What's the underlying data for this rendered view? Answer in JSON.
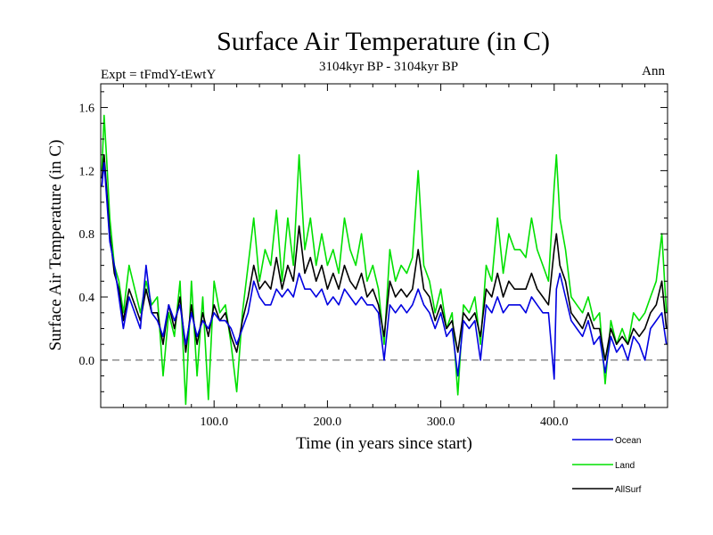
{
  "chart_data": {
    "type": "line",
    "title": "Surface Air Temperature (in C)",
    "subtitle": "3104kyr BP - 3104kyr BP",
    "expt_label": "Expt = tFmdY-tEwtY",
    "season_label": "Ann",
    "xlabel": "Time (in years since start)",
    "ylabel": "Surface Air Temperature (in C)",
    "xlim": [
      0,
      500
    ],
    "ylim": [
      -0.3,
      1.75
    ],
    "xticks": [
      {
        "value": 100,
        "label": "100.0"
      },
      {
        "value": 200,
        "label": "200.0"
      },
      {
        "value": 300,
        "label": "300.0"
      },
      {
        "value": 400,
        "label": "400.0"
      }
    ],
    "yticks": [
      {
        "value": 0.0,
        "label": "0.0"
      },
      {
        "value": 0.4,
        "label": "0.4"
      },
      {
        "value": 0.8,
        "label": "0.8"
      },
      {
        "value": 1.2,
        "label": "1.2"
      },
      {
        "value": 1.6,
        "label": "1.6"
      }
    ],
    "reference_line": {
      "value": 0.0,
      "style": "dashed"
    },
    "legend_position": "below-right",
    "series": [
      {
        "name": "Land",
        "color": "#00e000",
        "x": [
          1,
          3,
          5,
          8,
          12,
          16,
          20,
          25,
          30,
          35,
          40,
          45,
          50,
          55,
          60,
          65,
          70,
          75,
          80,
          85,
          90,
          95,
          100,
          105,
          110,
          115,
          120,
          125,
          130,
          135,
          140,
          145,
          150,
          155,
          160,
          165,
          170,
          175,
          180,
          185,
          190,
          195,
          200,
          205,
          210,
          215,
          220,
          225,
          230,
          235,
          240,
          245,
          250,
          255,
          260,
          265,
          270,
          275,
          280,
          285,
          290,
          295,
          300,
          305,
          310,
          315,
          320,
          325,
          330,
          335,
          340,
          345,
          350,
          355,
          360,
          365,
          370,
          375,
          380,
          385,
          390,
          395,
          400,
          402,
          405,
          410,
          415,
          420,
          425,
          430,
          435,
          440,
          445,
          450,
          455,
          460,
          465,
          470,
          475,
          480,
          485,
          490,
          495,
          499
        ],
        "values": [
          1.2,
          1.55,
          1.3,
          0.9,
          0.6,
          0.5,
          0.3,
          0.6,
          0.45,
          0.3,
          0.5,
          0.35,
          0.4,
          -0.1,
          0.3,
          0.15,
          0.5,
          -0.28,
          0.5,
          -0.1,
          0.4,
          -0.25,
          0.5,
          0.3,
          0.35,
          0.1,
          -0.2,
          0.3,
          0.6,
          0.9,
          0.5,
          0.7,
          0.6,
          0.95,
          0.5,
          0.9,
          0.6,
          1.3,
          0.7,
          0.9,
          0.6,
          0.8,
          0.6,
          0.7,
          0.55,
          0.9,
          0.7,
          0.6,
          0.8,
          0.5,
          0.6,
          0.45,
          0.1,
          0.7,
          0.5,
          0.6,
          0.55,
          0.65,
          1.2,
          0.6,
          0.5,
          0.3,
          0.45,
          0.2,
          0.3,
          -0.22,
          0.35,
          0.3,
          0.4,
          0.1,
          0.6,
          0.5,
          0.9,
          0.55,
          0.8,
          0.7,
          0.7,
          0.65,
          0.9,
          0.7,
          0.6,
          0.5,
          1.1,
          1.3,
          0.9,
          0.7,
          0.4,
          0.35,
          0.3,
          0.4,
          0.25,
          0.3,
          -0.15,
          0.25,
          0.1,
          0.2,
          0.1,
          0.3,
          0.25,
          0.3,
          0.4,
          0.5,
          0.8,
          0.3
        ]
      },
      {
        "name": "AllSurf",
        "color": "#000000",
        "x": [
          1,
          3,
          5,
          8,
          12,
          16,
          20,
          25,
          30,
          35,
          40,
          45,
          50,
          55,
          60,
          65,
          70,
          75,
          80,
          85,
          90,
          95,
          100,
          105,
          110,
          115,
          120,
          125,
          130,
          135,
          140,
          145,
          150,
          155,
          160,
          165,
          170,
          175,
          180,
          185,
          190,
          195,
          200,
          205,
          210,
          215,
          220,
          225,
          230,
          235,
          240,
          245,
          250,
          255,
          260,
          265,
          270,
          275,
          280,
          285,
          290,
          295,
          300,
          305,
          310,
          315,
          320,
          325,
          330,
          335,
          340,
          345,
          350,
          355,
          360,
          365,
          370,
          375,
          380,
          385,
          390,
          395,
          400,
          402,
          405,
          410,
          415,
          420,
          425,
          430,
          435,
          440,
          445,
          450,
          455,
          460,
          465,
          470,
          475,
          480,
          485,
          490,
          495,
          499
        ],
        "values": [
          1.15,
          1.3,
          1.1,
          0.8,
          0.55,
          0.45,
          0.25,
          0.45,
          0.35,
          0.25,
          0.45,
          0.3,
          0.3,
          0.1,
          0.35,
          0.2,
          0.4,
          0.05,
          0.35,
          0.1,
          0.3,
          0.15,
          0.35,
          0.25,
          0.3,
          0.15,
          0.05,
          0.25,
          0.4,
          0.6,
          0.45,
          0.5,
          0.45,
          0.65,
          0.45,
          0.6,
          0.5,
          0.85,
          0.55,
          0.65,
          0.5,
          0.6,
          0.45,
          0.55,
          0.45,
          0.6,
          0.5,
          0.45,
          0.55,
          0.4,
          0.45,
          0.35,
          0.15,
          0.5,
          0.4,
          0.45,
          0.4,
          0.45,
          0.7,
          0.45,
          0.4,
          0.25,
          0.35,
          0.2,
          0.25,
          0.05,
          0.3,
          0.25,
          0.3,
          0.15,
          0.45,
          0.4,
          0.55,
          0.4,
          0.5,
          0.45,
          0.45,
          0.45,
          0.55,
          0.45,
          0.4,
          0.35,
          0.7,
          0.8,
          0.6,
          0.5,
          0.3,
          0.25,
          0.2,
          0.3,
          0.2,
          0.2,
          0.0,
          0.2,
          0.1,
          0.15,
          0.1,
          0.2,
          0.15,
          0.2,
          0.3,
          0.35,
          0.5,
          0.2
        ]
      },
      {
        "name": "Ocean",
        "color": "#0000e0",
        "x": [
          1,
          3,
          5,
          8,
          12,
          16,
          20,
          25,
          30,
          35,
          40,
          45,
          50,
          55,
          60,
          65,
          70,
          75,
          80,
          85,
          90,
          95,
          100,
          105,
          110,
          115,
          120,
          125,
          130,
          135,
          140,
          145,
          150,
          155,
          160,
          165,
          170,
          175,
          180,
          185,
          190,
          195,
          200,
          205,
          210,
          215,
          220,
          225,
          230,
          235,
          240,
          245,
          250,
          255,
          260,
          265,
          270,
          275,
          280,
          285,
          290,
          295,
          300,
          305,
          310,
          315,
          320,
          325,
          330,
          335,
          340,
          345,
          350,
          355,
          360,
          365,
          370,
          375,
          380,
          385,
          390,
          395,
          400,
          402,
          405,
          410,
          415,
          420,
          425,
          430,
          435,
          440,
          445,
          450,
          455,
          460,
          465,
          470,
          475,
          480,
          485,
          490,
          495,
          499
        ],
        "values": [
          1.1,
          1.25,
          1.05,
          0.75,
          0.6,
          0.4,
          0.2,
          0.4,
          0.3,
          0.2,
          0.6,
          0.3,
          0.25,
          0.15,
          0.35,
          0.25,
          0.35,
          0.1,
          0.3,
          0.15,
          0.25,
          0.2,
          0.3,
          0.25,
          0.25,
          0.2,
          0.1,
          0.2,
          0.3,
          0.5,
          0.4,
          0.35,
          0.35,
          0.45,
          0.4,
          0.45,
          0.4,
          0.55,
          0.45,
          0.45,
          0.4,
          0.45,
          0.35,
          0.4,
          0.35,
          0.45,
          0.4,
          0.35,
          0.4,
          0.35,
          0.35,
          0.3,
          0.0,
          0.35,
          0.3,
          0.35,
          0.3,
          0.35,
          0.45,
          0.35,
          0.3,
          0.2,
          0.3,
          0.15,
          0.2,
          -0.1,
          0.25,
          0.2,
          0.25,
          0.0,
          0.35,
          0.3,
          0.4,
          0.3,
          0.35,
          0.35,
          0.35,
          0.3,
          0.4,
          0.35,
          0.3,
          0.3,
          -0.12,
          0.45,
          0.55,
          0.4,
          0.25,
          0.2,
          0.15,
          0.25,
          0.1,
          0.15,
          -0.08,
          0.15,
          0.05,
          0.1,
          0.0,
          0.15,
          0.1,
          0.0,
          0.2,
          0.25,
          0.3,
          0.1
        ]
      }
    ],
    "legend_order": [
      "Ocean",
      "Land",
      "AllSurf"
    ]
  }
}
